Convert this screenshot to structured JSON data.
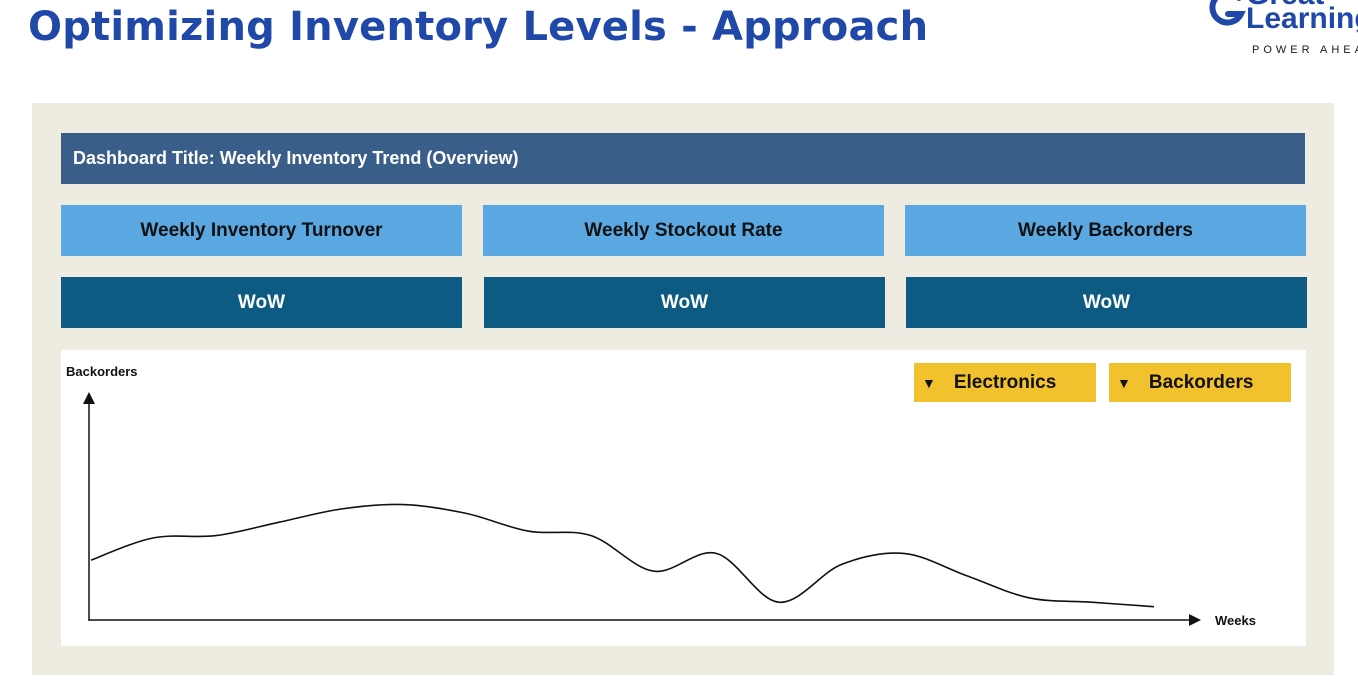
{
  "slide": {
    "title": "Optimizing Inventory Levels - Approach"
  },
  "logo": {
    "line1": "Great",
    "line2": "Learning",
    "tagline": "POWER AHEAD"
  },
  "dashboard": {
    "title": "Dashboard Title: Weekly Inventory Trend (Overview)",
    "kpis": [
      {
        "label": "Weekly Inventory Turnover",
        "wow": "WoW"
      },
      {
        "label": "Weekly Stockout Rate",
        "wow": "WoW"
      },
      {
        "label": "Weekly Backorders",
        "wow": "WoW"
      }
    ],
    "filters": [
      {
        "arrow": "▼",
        "label": "Electronics"
      },
      {
        "arrow": "▼",
        "label": "Backorders"
      }
    ]
  },
  "chart_data": {
    "type": "line",
    "title": "",
    "xlabel": "Weeks",
    "ylabel": "Backorders",
    "grid": false,
    "legend": "none",
    "series": [
      {
        "values": [
          0.27,
          0.37,
          0.38,
          0.44,
          0.5,
          0.52,
          0.48,
          0.4,
          0.38,
          0.22,
          0.3,
          0.08,
          0.25,
          0.3,
          0.2,
          0.1,
          0.08,
          0.06
        ]
      }
    ],
    "line_color": "#111111"
  }
}
